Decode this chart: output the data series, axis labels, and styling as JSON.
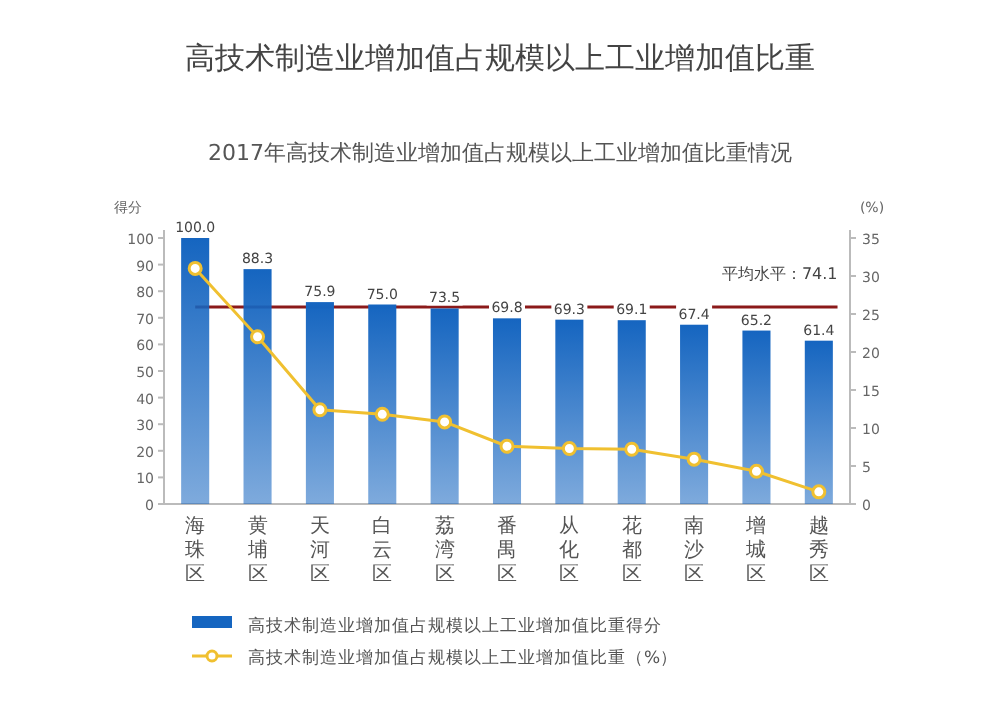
{
  "chart_data": {
    "type": "bar",
    "title": "高技术制造业增加值占规模以上工业增加值比重",
    "subtitle": "2017年高技术制造业增加值占规模以上工业增加值比重情况",
    "ylabel": "得分",
    "y2label": "(%)",
    "categories": [
      "海珠区",
      "黄埔区",
      "天河区",
      "白云区",
      "荔湾区",
      "番禺区",
      "从化区",
      "花都区",
      "南沙区",
      "增城区",
      "越秀区"
    ],
    "series": [
      {
        "name": "高技术制造业增加值占规模以上工业增加值比重得分",
        "color": "#1565c0",
        "values": [
          100.0,
          88.3,
          75.9,
          75.0,
          73.5,
          69.8,
          69.3,
          69.1,
          67.4,
          65.2,
          61.4
        ],
        "value_labels": [
          "100.0",
          "88.3",
          "75.9",
          "75.0",
          "73.5",
          "69.8",
          "69.3",
          "69.1",
          "67.4",
          "65.2",
          "61.4"
        ]
      },
      {
        "name": "高技术制造业增加值占规模以上工业增加值比重（%）",
        "type": "line",
        "axis": "y2",
        "color": "#f0c030",
        "marker": "circle",
        "values": [
          31.0,
          22.0,
          12.4,
          11.8,
          10.8,
          7.6,
          7.3,
          7.2,
          5.9,
          4.3,
          1.6
        ]
      }
    ],
    "ylim": [
      0,
      100
    ],
    "yticks": [
      0,
      10,
      20,
      30,
      40,
      50,
      60,
      70,
      80,
      90,
      100
    ],
    "y2lim": [
      0,
      35
    ],
    "y2ticks": [
      0,
      5,
      10,
      15,
      20,
      25,
      30,
      35
    ],
    "ref_lines": [
      {
        "axis": "y",
        "value": 74.1,
        "label": "平均水平：74.1",
        "color": "#8b1a1a"
      }
    ],
    "legend": "bottom",
    "grid": false
  }
}
